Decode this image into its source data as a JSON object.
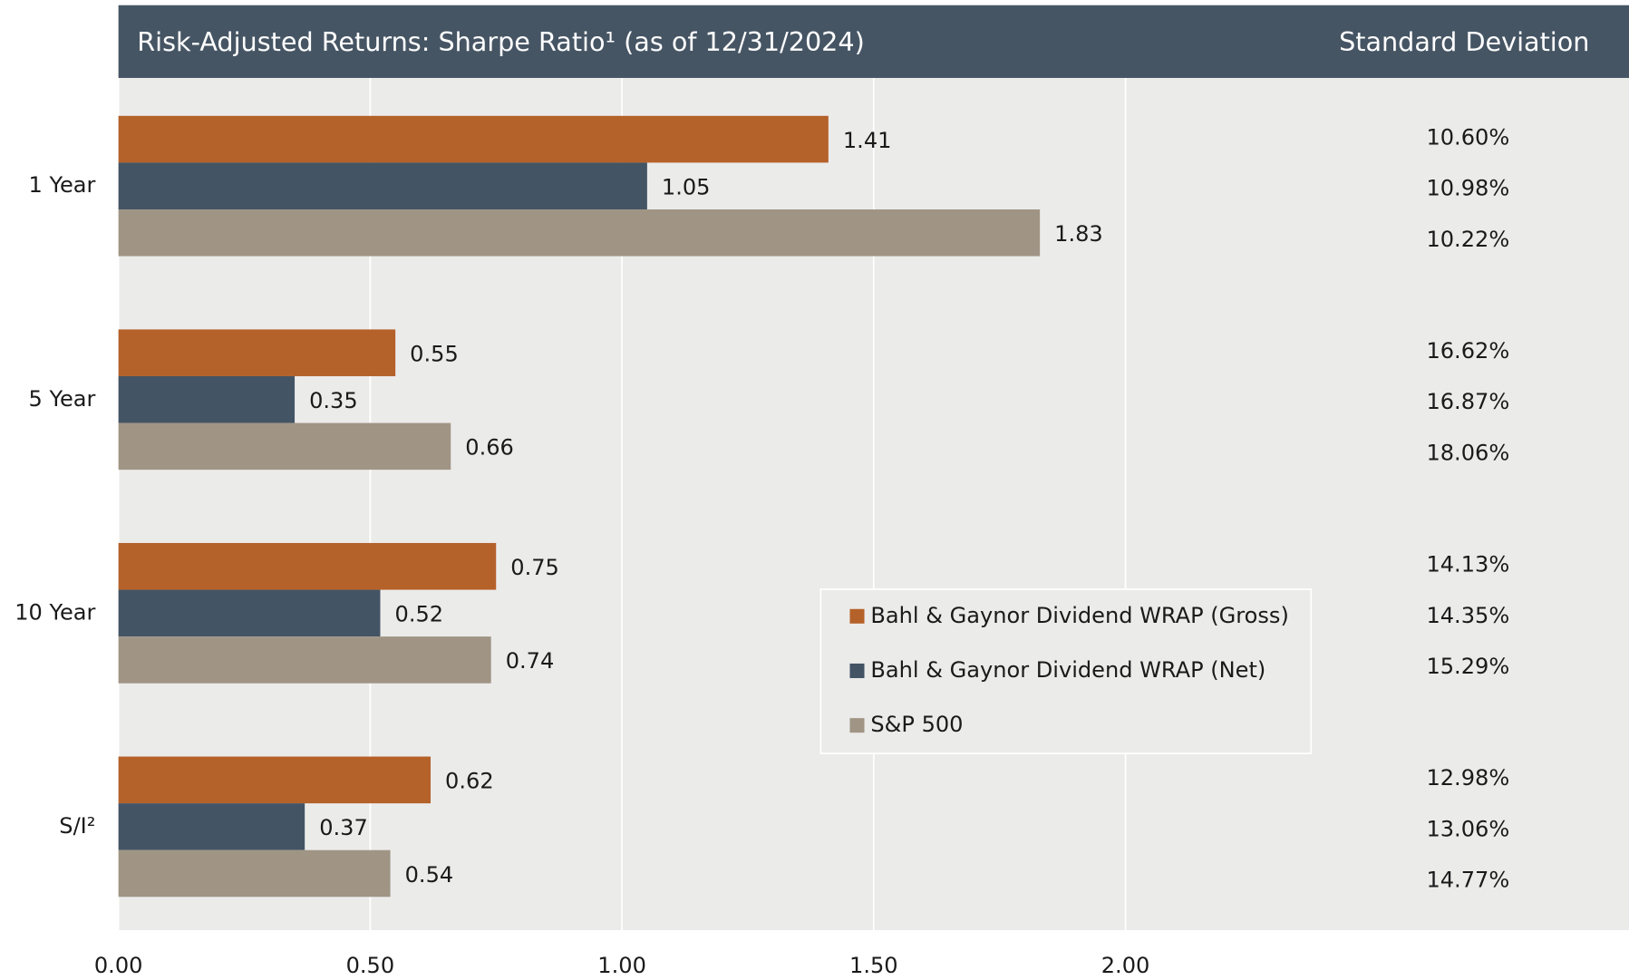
{
  "chart_data": {
    "type": "bar",
    "orientation": "horizontal",
    "title": "Risk-Adjusted Returns: Sharpe Ratio¹ (as of 12/31/2024)",
    "std_dev_title": "Standard Deviation",
    "categories": [
      "1 Year",
      "5 Year",
      "10 Year",
      "S/I²"
    ],
    "series": [
      {
        "name": "Bahl & Gaynor Dividend WRAP (Gross)",
        "color": "#b5612a",
        "values": [
          1.41,
          0.55,
          0.75,
          0.62
        ],
        "std_dev": [
          "10.60%",
          "16.62%",
          "14.13%",
          "12.98%"
        ]
      },
      {
        "name": "Bahl & Gaynor Dividend WRAP (Net)",
        "color": "#435464",
        "values": [
          1.05,
          0.35,
          0.52,
          0.37
        ],
        "std_dev": [
          "10.98%",
          "16.87%",
          "14.35%",
          "13.06%"
        ]
      },
      {
        "name": "S&P 500",
        "color": "#a09585",
        "values": [
          1.83,
          0.66,
          0.74,
          0.54
        ],
        "std_dev": [
          "10.22%",
          "18.06%",
          "15.29%",
          "14.77%"
        ]
      }
    ],
    "xlim": [
      0,
      3
    ],
    "xticks": [
      {
        "value": 0,
        "label": "0.00"
      },
      {
        "value": 0.5,
        "label": "0.50"
      },
      {
        "value": 1,
        "label": "1.00"
      },
      {
        "value": 1.5,
        "label": "1.50"
      },
      {
        "value": 2,
        "label": "2.00"
      }
    ],
    "grid": true,
    "legend": "center"
  }
}
